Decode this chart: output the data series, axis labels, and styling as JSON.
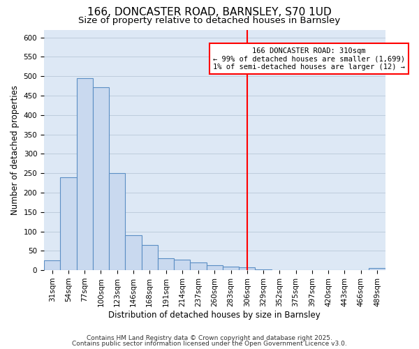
{
  "title": "166, DONCASTER ROAD, BARNSLEY, S70 1UD",
  "subtitle": "Size of property relative to detached houses in Barnsley",
  "xlabel": "Distribution of detached houses by size in Barnsley",
  "ylabel": "Number of detached properties",
  "bar_labels": [
    "31sqm",
    "54sqm",
    "77sqm",
    "100sqm",
    "123sqm",
    "146sqm",
    "168sqm",
    "191sqm",
    "214sqm",
    "237sqm",
    "260sqm",
    "283sqm",
    "306sqm",
    "329sqm",
    "352sqm",
    "375sqm",
    "397sqm",
    "420sqm",
    "443sqm",
    "466sqm",
    "489sqm"
  ],
  "bar_values": [
    25,
    240,
    495,
    472,
    250,
    90,
    65,
    30,
    27,
    20,
    12,
    10,
    8,
    2,
    0,
    0,
    0,
    0,
    0,
    0,
    5
  ],
  "bar_color": "#c9d9ef",
  "bar_edge_color": "#5b8ec4",
  "vline_index": 12,
  "vline_color": "red",
  "annotation_title": "166 DONCASTER ROAD: 310sqm",
  "annotation_line1": "← 99% of detached houses are smaller (1,699)",
  "annotation_line2": "1% of semi-detached houses are larger (12) →",
  "annotation_box_color": "white",
  "annotation_box_edgecolor": "red",
  "ylim": [
    0,
    620
  ],
  "yticks": [
    0,
    50,
    100,
    150,
    200,
    250,
    300,
    350,
    400,
    450,
    500,
    550,
    600
  ],
  "footnote1": "Contains HM Land Registry data © Crown copyright and database right 2025.",
  "footnote2": "Contains public sector information licensed under the Open Government Licence v3.0.",
  "bg_color": "#dde8f5",
  "grid_color": "#b8c8d8",
  "title_fontsize": 11,
  "subtitle_fontsize": 9.5,
  "axis_label_fontsize": 8.5,
  "tick_fontsize": 7.5,
  "annotation_fontsize": 7.5,
  "footnote_fontsize": 6.5
}
